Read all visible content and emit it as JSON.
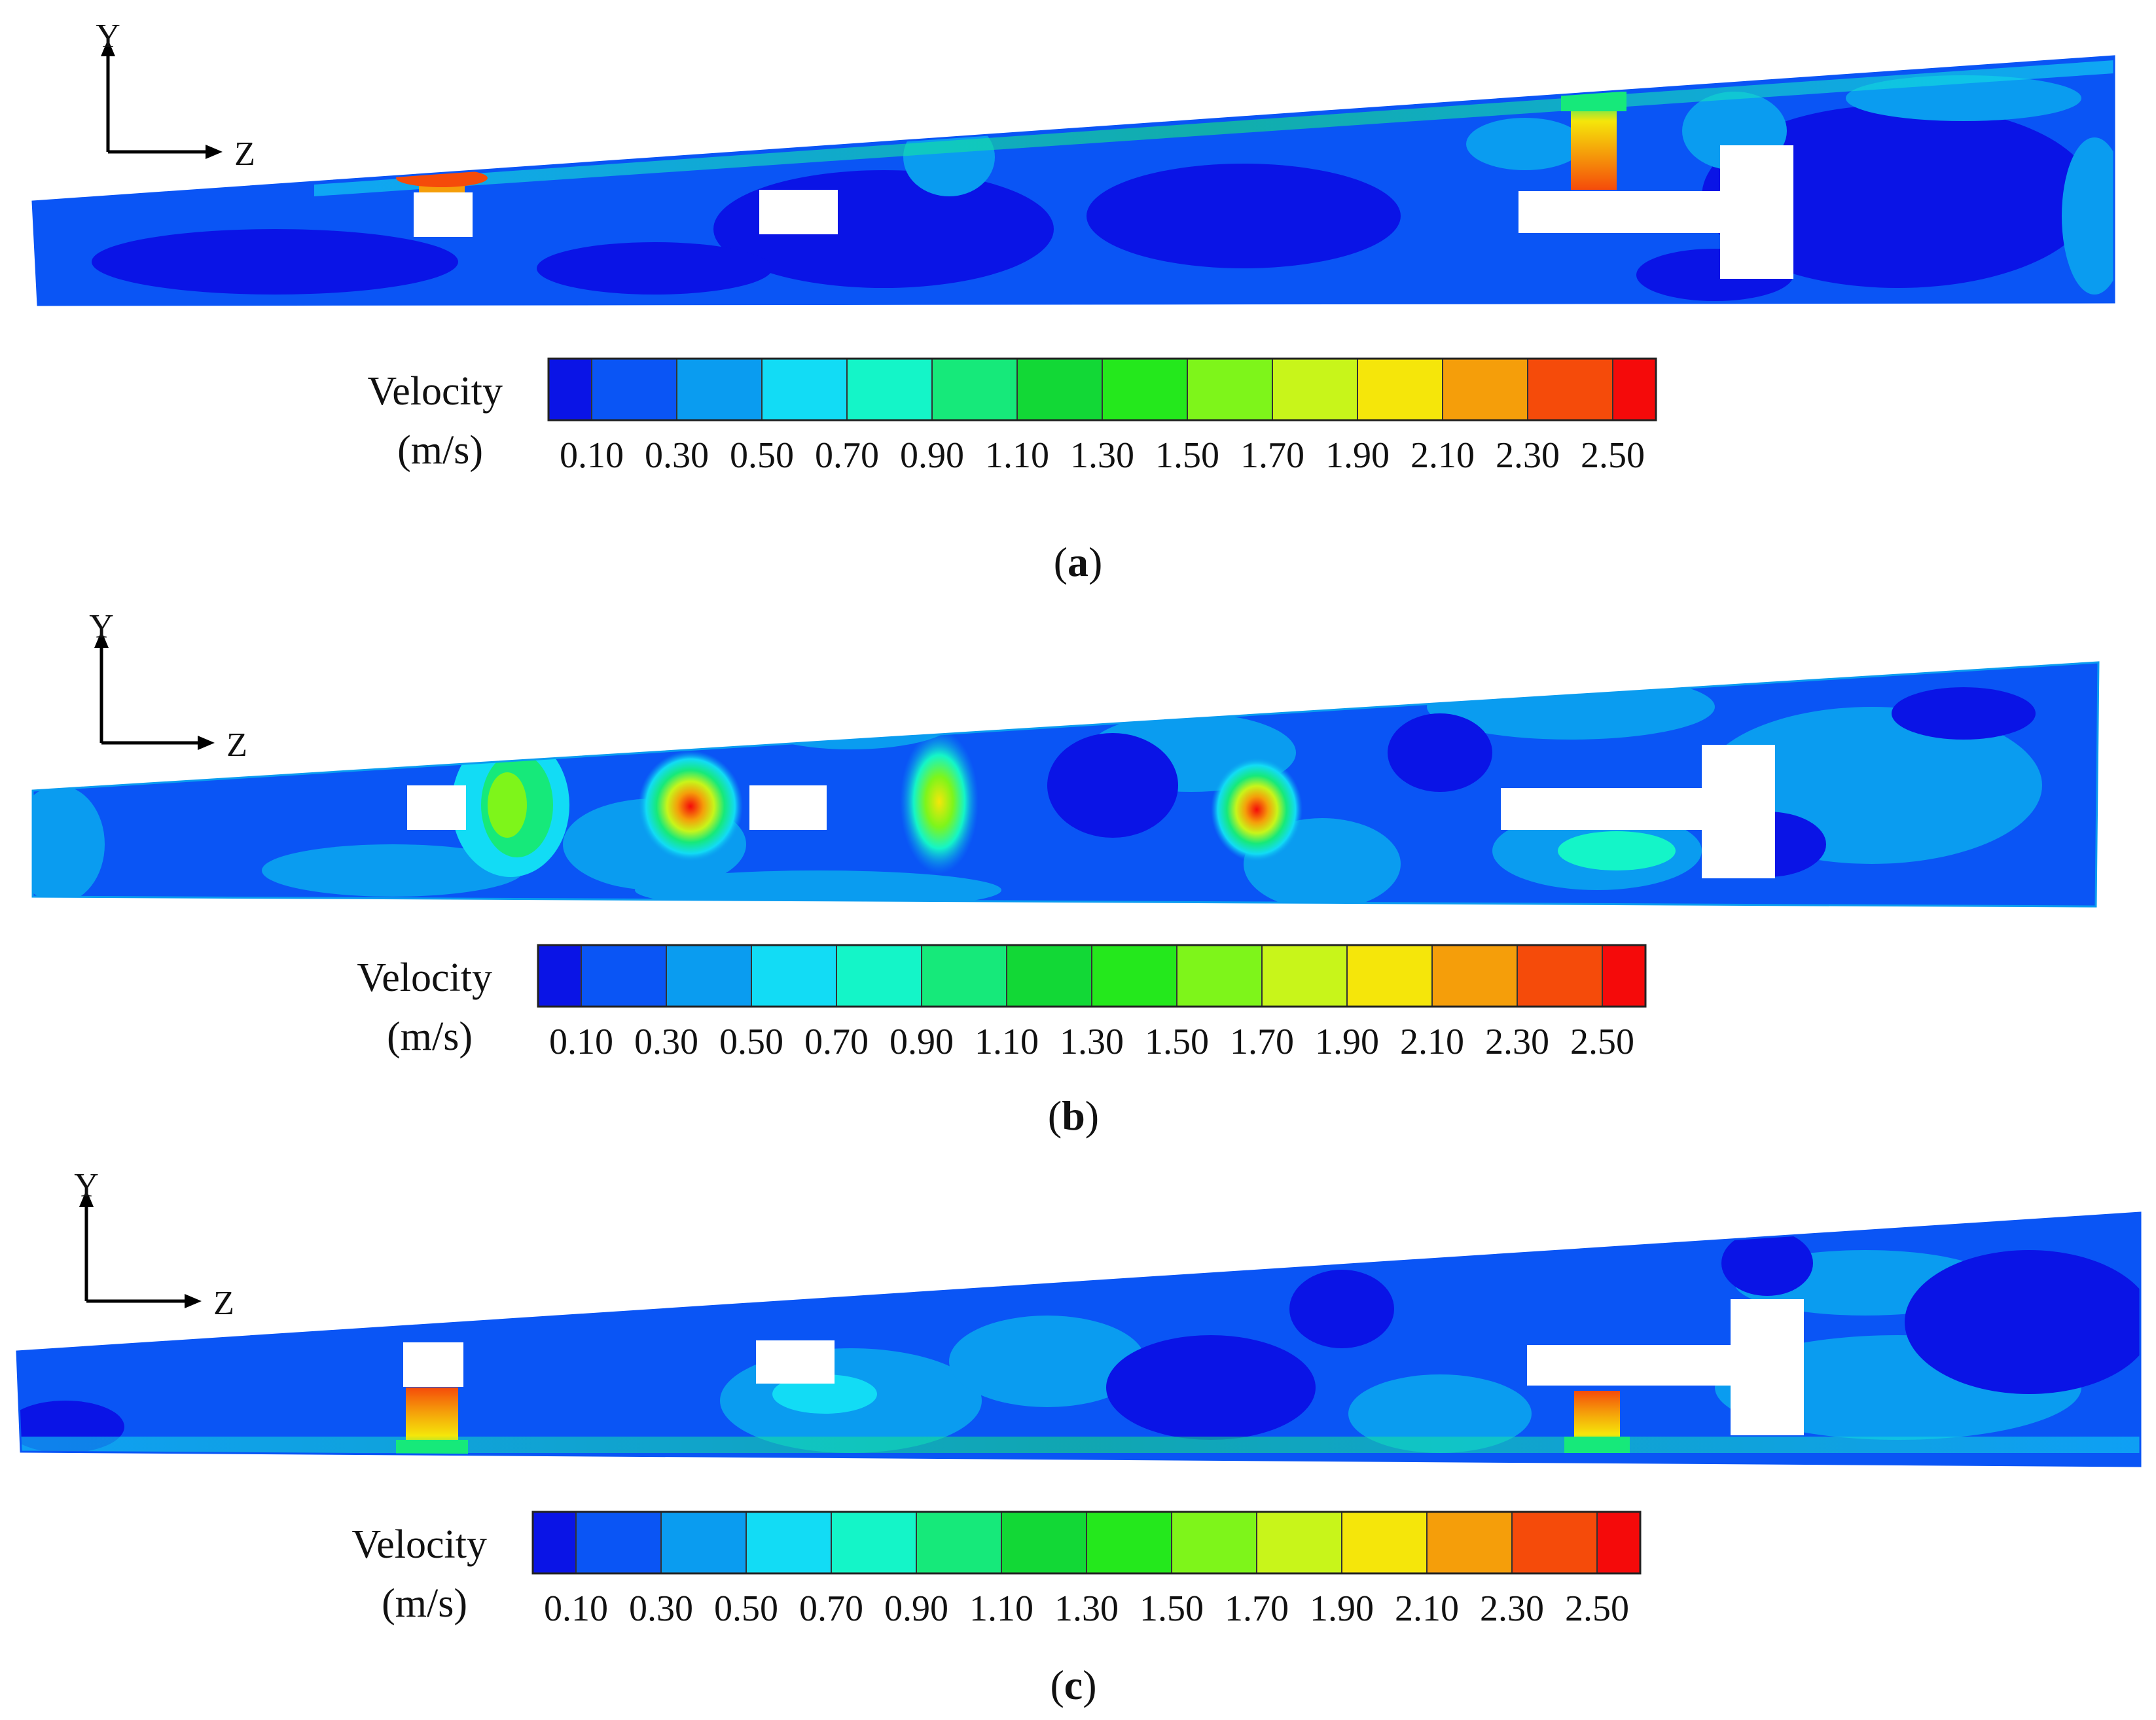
{
  "axis_labels": {
    "y": "Y",
    "z": "Z"
  },
  "colorbar": {
    "title": "Velocity",
    "unit": "(m/s)",
    "colors": [
      "#0a14e6",
      "#0a55f5",
      "#0a9cf0",
      "#12dcf5",
      "#14f5c8",
      "#16e97a",
      "#12d836",
      "#24e81c",
      "#7ef51a",
      "#c8f51a",
      "#f5e60a",
      "#f59e0a",
      "#f54b0a",
      "#f50a0a"
    ],
    "tick_labels": [
      "0.10",
      "0.30",
      "0.50",
      "0.70",
      "0.90",
      "1.10",
      "1.30",
      "1.50",
      "1.70",
      "1.90",
      "2.10",
      "2.30",
      "2.50"
    ]
  },
  "panels": [
    {
      "id": "a",
      "caption_open": "(",
      "caption_letter": "a",
      "caption_close": ")"
    },
    {
      "id": "b",
      "caption_open": "(",
      "caption_letter": "b",
      "caption_close": ")"
    },
    {
      "id": "c",
      "caption_open": "(",
      "caption_letter": "c",
      "caption_close": ")"
    }
  ],
  "field_colors": {
    "base": "#0a55f5",
    "low": "#0a14e6",
    "mid": "#0a9cf0",
    "high1": "#12dcf5",
    "high2": "#16e97a",
    "high3": "#f5e60a",
    "high4": "#f59e0a",
    "peak": "#f54b0a"
  }
}
